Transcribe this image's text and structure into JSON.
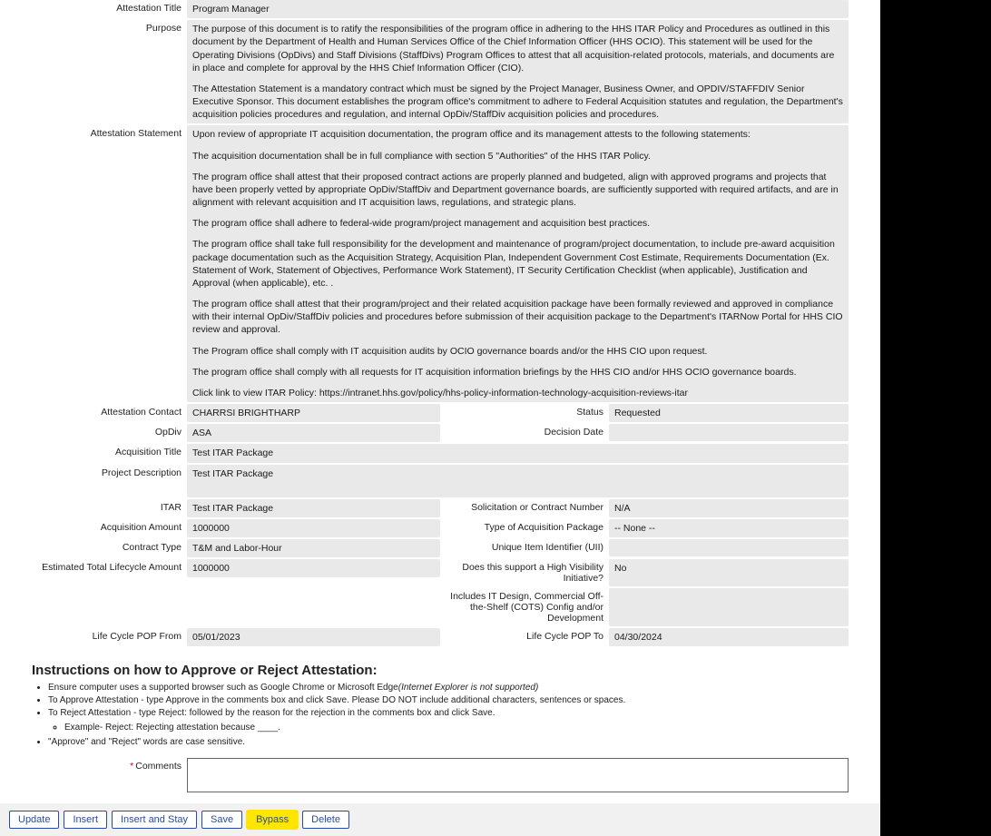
{
  "colors": {
    "field_bg": "#e9e9e9",
    "button_border": "#2a4c9c",
    "highlight": "#ffe600",
    "required": "#d00020",
    "page_bg": "#ffffff",
    "outer_bg": "#000000"
  },
  "fields": {
    "attestation_title": {
      "label": "Attestation Title",
      "value": "Program Manager"
    },
    "purpose": {
      "label": "Purpose",
      "paras": [
        "The purpose of this document is to ratify the responsibilities of the program office in adhering to the HHS ITAR Policy and Procedures as outlined in this document by the Department of Health and Human Services Office of the Chief Information Officer (HHS OCIO). This statement will be used for the Operating Divisions (OpDivs) and Staff Divisions (StaffDivs) Program Offices to attest that all acquisition-related protocols, materials, and documents are in place and complete for approval by the HHS Chief Information Officer (CIO).",
        "The Attestation Statement is a mandatory contract which must be signed by the Project Manager, Business Owner, and OPDIV/STAFFDIV Senior Executive Sponsor. This document establishes the program office's commitment to adhere to Federal Acquisition statutes and regulation, the Department's acquisition policies procedures and regulation, and internal OpDiv/StaffDiv acquisition policies and procedures."
      ]
    },
    "attestation_statement": {
      "label": "Attestation Statement",
      "paras": [
        "Upon review of appropriate IT acquisition documentation, the program office and its management attests to the following statements:",
        "The acquisition documentation shall be in full compliance with section 5 \"Authorities\" of the HHS ITAR Policy.",
        "The program office shall attest that their proposed contract actions are properly planned and budgeted, align with approved programs and projects that have been properly vetted by appropriate OpDiv/StaffDiv and Department governance boards, are sufficiently supported with required artifacts, and are in alignment with relevant acquisition and IT acquisition laws, regulations, and strategic plans.",
        "The program office shall adhere to federal-wide program/project management and acquisition best practices.",
        "The program office shall take full responsibility for the development and maintenance of program/project documentation, to include pre-award acquisition package documentation such as the Acquisition Strategy, Acquisition Plan, Independent Government Cost Estimate, Requirements Documentation (Ex. Statement of Work, Statement of Objectives, Performance Work Statement), IT Security Certification Checklist (when applicable), Justification and Approval (when applicable), etc. .",
        "The program office shall attest that their program/project and their related acquisition package have been formally reviewed and approved in compliance with their internal OpDiv/StaffDiv policies and procedures before submission of their acquisition package to the Department's ITARNow Portal for HHS CIO review and approval.",
        "The Program office shall comply with IT acquisition audits by OCIO governance boards and/or the HHS CIO upon request.",
        "The program office shall comply with all requests for IT acquisition information briefings by the HHS CIO and/or HHS OCIO governance boards.",
        "Click link to view ITAR Policy: https://intranet.hhs.gov/policy/hhs-policy-information-technology-acquisition-reviews-itar"
      ]
    },
    "attestation_contact": {
      "label": "Attestation Contact",
      "value": "CHARRSI BRIGHTHARP"
    },
    "status": {
      "label": "Status",
      "value": "Requested"
    },
    "opdiv": {
      "label": "OpDiv",
      "value": "ASA"
    },
    "decision_date": {
      "label": "Decision Date",
      "value": ""
    },
    "acquisition_title": {
      "label": "Acquisition Title",
      "value": "Test  ITAR Package"
    },
    "project_description": {
      "label": "Project Description",
      "value": "Test ITAR Package"
    },
    "itar": {
      "label": "ITAR",
      "value": "Test  ITAR Package"
    },
    "solicitation_number": {
      "label": "Solicitation or Contract Number",
      "value": "N/A"
    },
    "acquisition_amount": {
      "label": "Acquisition Amount",
      "value": "1000000"
    },
    "acq_pkg_type": {
      "label": "Type of Acquisition Package",
      "value": "-- None --"
    },
    "contract_type": {
      "label": "Contract Type",
      "value": "T&M and Labor-Hour"
    },
    "uii": {
      "label": "Unique Item Identifier (UII)",
      "value": ""
    },
    "est_total": {
      "label": "Estimated Total Lifecycle Amount",
      "value": "1000000"
    },
    "high_vis": {
      "label": "Does this support a High Visibility Initiative?",
      "value": "No"
    },
    "includes_it": {
      "label": "Includes IT Design, Commercial Off-the-Shelf (COTS) Config and/or Development",
      "value": ""
    },
    "pop_from": {
      "label": "Life Cycle POP From",
      "value": "05/01/2023"
    },
    "pop_to": {
      "label": "Life Cycle POP To",
      "value": "04/30/2024"
    }
  },
  "instructions": {
    "heading": "Instructions on how to Approve or Reject Attestation:",
    "b1a": "Ensure computer uses a supported browser such as Google Chrome or Microsoft Edge",
    "b1b": "(Internet Explorer is not supported)",
    "b2": "To Approve Attestation - type Approve in the comments box and click Save. Please DO NOT include additional characters, sentences or spaces.",
    "b3": "To Reject Attestation - type Reject: followed by the reason for the rejection in the comments box and click Save.",
    "b3a": "Example- Reject: Rejecting attestation because ____.",
    "b4": "\"Approve\" and \"Reject\" words are case sensitive."
  },
  "comments": {
    "label": "Comments",
    "value": ""
  },
  "buttons": {
    "update": "Update",
    "insert": "Insert",
    "insert_stay": "Insert and Stay",
    "save": "Save",
    "bypass": "Bypass",
    "delete": "Delete"
  }
}
